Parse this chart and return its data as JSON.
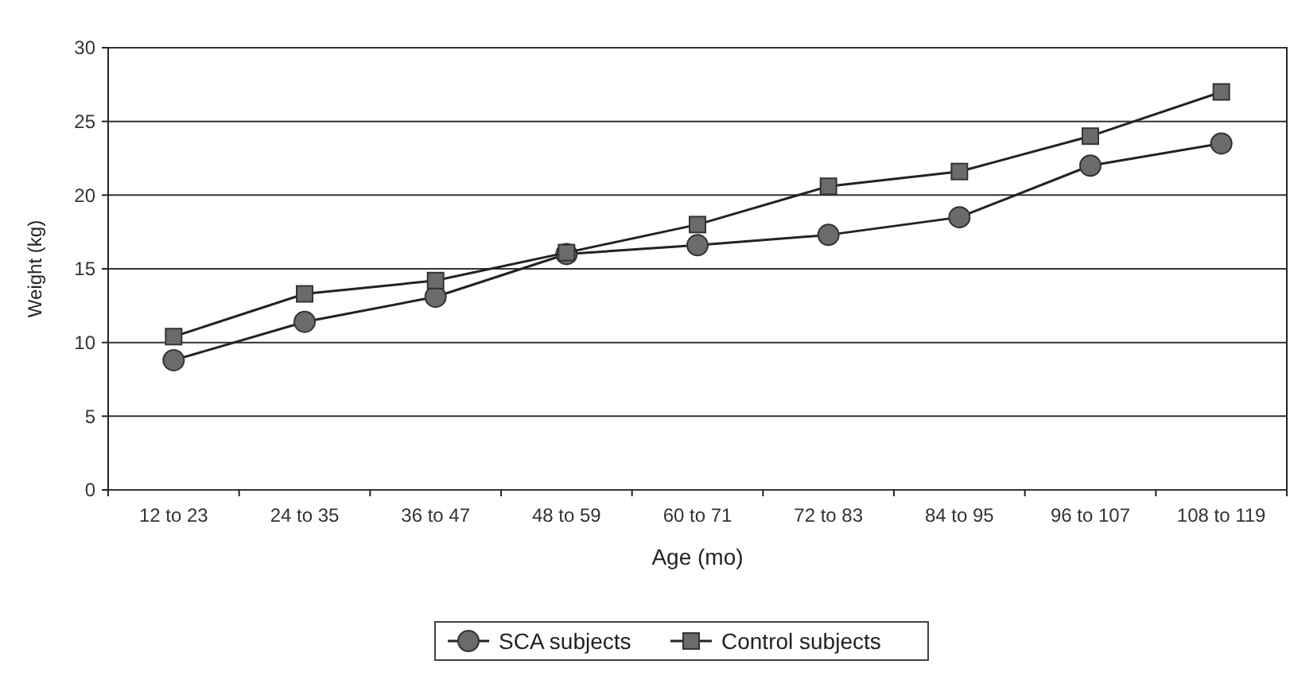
{
  "chart_data": {
    "type": "line",
    "xlabel": "Age (mo)",
    "ylabel": "Weight (kg)",
    "categories": [
      "12 to 23",
      "24 to 35",
      "36 to 47",
      "48 to 59",
      "60 to 71",
      "72 to 83",
      "84 to 95",
      "96 to 107",
      "108 to 119"
    ],
    "series": [
      {
        "name": "SCA subjects",
        "color": "#6b6b6b",
        "marker": "circle",
        "values": [
          8.8,
          11.4,
          13.1,
          16.0,
          16.6,
          17.3,
          18.5,
          22.0,
          23.5
        ]
      },
      {
        "name": "Control subjects",
        "color": "#6b6b6b",
        "marker": "square",
        "values": [
          10.4,
          13.3,
          14.2,
          16.1,
          18.0,
          20.6,
          21.6,
          24.0,
          27.0
        ]
      }
    ],
    "ylim": [
      0,
      30
    ],
    "yticks": [
      0,
      5,
      10,
      15,
      20,
      25,
      30
    ],
    "grid": "y",
    "legend": "bottom",
    "line_style": "solid"
  }
}
